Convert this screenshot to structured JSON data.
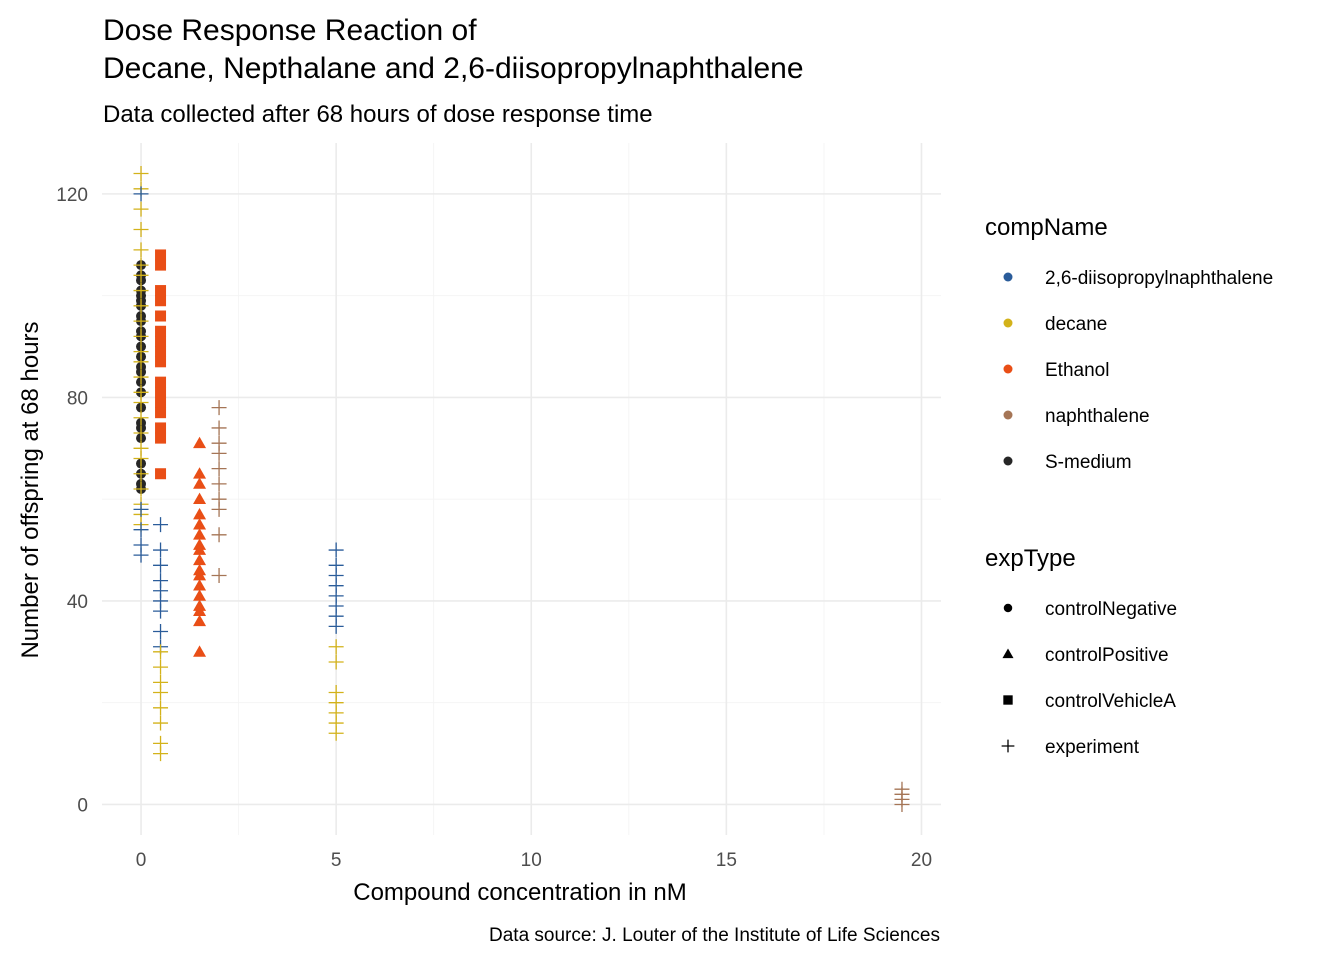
{
  "chart_data": {
    "type": "scatter",
    "title_lines": [
      "Dose Response Reaction of",
      "Decane, Nepthalane and 2,6-diisopropylnaphthalene"
    ],
    "subtitle": "Data collected after 68 hours of dose response time",
    "xlabel": "Compound concentration in nM",
    "ylabel": "Number of offspring at 68 hours",
    "caption": "Data source: J. Louter of the Institute of Life Sciences",
    "xlim": [
      -1.0,
      20.5
    ],
    "ylim": [
      -6,
      130
    ],
    "x_ticks": [
      0,
      5,
      10,
      15,
      20
    ],
    "x_tick_labels": [
      "0",
      "5",
      "10",
      "15",
      "20"
    ],
    "y_ticks": [
      0,
      40,
      80,
      120
    ],
    "y_tick_labels": [
      "0",
      "40",
      "80",
      "120"
    ],
    "grid": true,
    "legend_position": "right",
    "color_legend": {
      "title": "compName",
      "items": [
        {
          "label": "2,6-diisopropylnaphthalene",
          "color": "#2A5C9A"
        },
        {
          "label": "decane",
          "color": "#D3B21A"
        },
        {
          "label": "Ethanol",
          "color": "#E94E16"
        },
        {
          "label": "naphthalene",
          "color": "#A57556"
        },
        {
          "label": "S-medium",
          "color": "#262626"
        }
      ]
    },
    "shape_legend": {
      "title": "expType",
      "items": [
        {
          "label": "controlNegative",
          "shape": "circle"
        },
        {
          "label": "controlPositive",
          "shape": "triangle"
        },
        {
          "label": "controlVehicleA",
          "shape": "square"
        },
        {
          "label": "experiment",
          "shape": "plus"
        }
      ]
    },
    "series": [
      {
        "compName": "S-medium",
        "expType": "controlNegative",
        "color": "#262626",
        "shape": "circle",
        "x": 0,
        "y": [
          106,
          104,
          103,
          101,
          100,
          99,
          98,
          96,
          95,
          93,
          92,
          90,
          88,
          86,
          85,
          83,
          81,
          78,
          75,
          74,
          72,
          67,
          65,
          63,
          62
        ]
      },
      {
        "compName": "decane",
        "expType": "experiment",
        "color": "#D3B21A",
        "shape": "plus",
        "x": 0,
        "y": [
          124,
          121,
          117,
          113,
          109,
          106,
          104,
          101,
          98,
          95,
          92,
          89,
          87,
          84,
          81,
          79,
          76,
          73,
          70,
          68,
          65,
          62,
          59,
          57,
          55
        ]
      },
      {
        "compName": "2,6-diisopropylnaphthalene",
        "expType": "experiment",
        "color": "#2A5C9A",
        "shape": "plus",
        "x": 0,
        "y": [
          120,
          58,
          54,
          51,
          49
        ]
      },
      {
        "compName": "Ethanol",
        "expType": "controlVehicleA",
        "color": "#E94E16",
        "shape": "square",
        "x": 0.5,
        "y": [
          108,
          106,
          101,
          99,
          96,
          93,
          91,
          89,
          87,
          83,
          81,
          79,
          77,
          74,
          72,
          65
        ]
      },
      {
        "compName": "2,6-diisopropylnaphthalene",
        "expType": "experiment",
        "color": "#2A5C9A",
        "shape": "plus",
        "x": 0.5,
        "y": [
          55,
          50,
          47,
          44,
          42,
          40,
          38,
          34,
          31
        ]
      },
      {
        "compName": "decane",
        "expType": "experiment",
        "color": "#D3B21A",
        "shape": "plus",
        "x": 0.5,
        "y": [
          30,
          27,
          24,
          22,
          19,
          16,
          12,
          10
        ]
      },
      {
        "compName": "Ethanol",
        "expType": "controlPositive",
        "color": "#E94E16",
        "shape": "triangle",
        "x": 1.5,
        "y": [
          71,
          65,
          63,
          60,
          57,
          55,
          53,
          51,
          50,
          48,
          46,
          45,
          43,
          41,
          39,
          38,
          36,
          30
        ]
      },
      {
        "compName": "naphthalene",
        "expType": "experiment",
        "color": "#A57556",
        "shape": "plus",
        "x": 2,
        "y": [
          78,
          74,
          71,
          69,
          66,
          63,
          60,
          58,
          53,
          45
        ]
      },
      {
        "compName": "2,6-diisopropylnaphthalene",
        "expType": "experiment",
        "color": "#2A5C9A",
        "shape": "plus",
        "x": 5,
        "y": [
          50,
          47,
          45,
          43,
          41,
          39,
          37,
          35
        ]
      },
      {
        "compName": "decane",
        "expType": "experiment",
        "color": "#D3B21A",
        "shape": "plus",
        "x": 5,
        "y": [
          31,
          28,
          22,
          20,
          18,
          16,
          14
        ]
      },
      {
        "compName": "naphthalene",
        "expType": "experiment",
        "color": "#A57556",
        "shape": "plus",
        "x": 19.5,
        "y": [
          3,
          2,
          1,
          0
        ]
      }
    ]
  }
}
